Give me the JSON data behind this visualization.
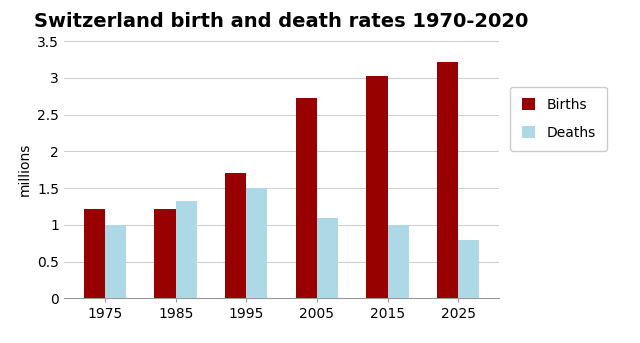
{
  "title": "Switzerland birth and death rates 1970-2020",
  "ylabel": "millions",
  "categories": [
    1975,
    1985,
    1995,
    2005,
    2015,
    2025
  ],
  "births": [
    1.22,
    1.22,
    1.7,
    2.72,
    3.02,
    3.22
  ],
  "deaths": [
    1.0,
    1.32,
    1.5,
    1.1,
    1.0,
    0.8
  ],
  "birth_color": "#990000",
  "death_color": "#ADD8E6",
  "ylim": [
    0,
    3.5
  ],
  "ytick_values": [
    0,
    0.5,
    1.0,
    1.5,
    2.0,
    2.5,
    3.0,
    3.5
  ],
  "ytick_labels": [
    "0",
    "0.5",
    "1",
    "1.5",
    "2",
    "2.5",
    "3",
    "3.5"
  ],
  "bar_width": 0.3,
  "legend_labels": [
    "Births",
    "Deaths"
  ],
  "title_fontsize": 14,
  "ylabel_fontsize": 10,
  "tick_fontsize": 10,
  "legend_fontsize": 10,
  "background_color": "#ffffff",
  "grid_color": "#cccccc"
}
